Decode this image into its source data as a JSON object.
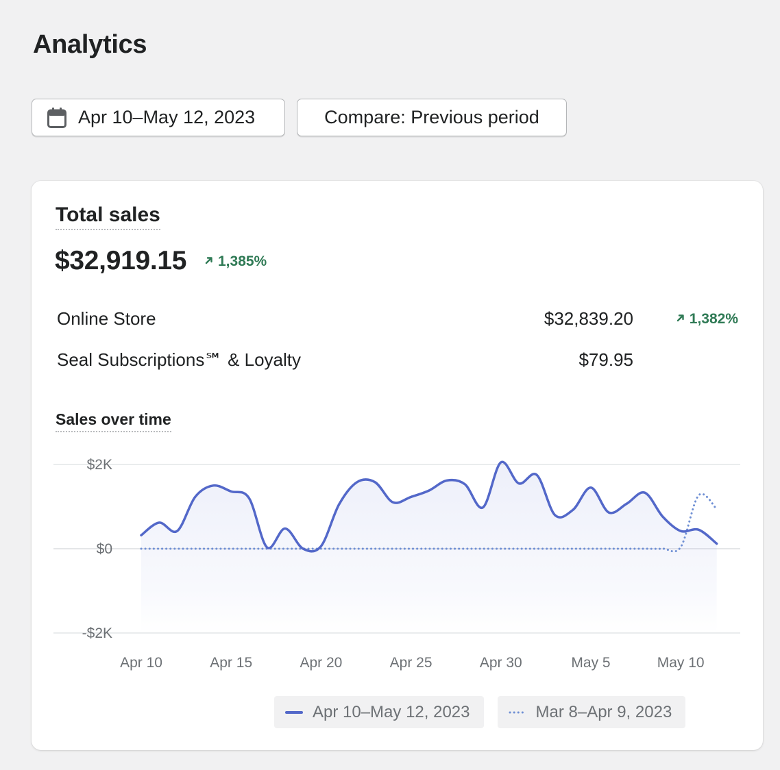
{
  "page": {
    "title": "Analytics"
  },
  "toolbar": {
    "date_range_label": "Apr 10–May 12, 2023",
    "compare_label": "Compare: Previous period",
    "date_icon": "calendar-icon"
  },
  "card": {
    "title": "Total sales",
    "total_value": "$32,919.15",
    "total_delta": "1,385%",
    "rows": [
      {
        "name": "Online Store",
        "value": "$32,839.20",
        "delta": "1,382%"
      },
      {
        "name": "Seal Subscriptions℠ & Loyalty",
        "value": "$79.95",
        "delta": ""
      }
    ]
  },
  "chart": {
    "title": "Sales over time"
  },
  "colors": {
    "current": "#5368c9",
    "previous": "#6e8fd4",
    "positive": "#2f7a55"
  },
  "chart_data": {
    "type": "line",
    "x": [
      "Apr 10",
      "Apr 11",
      "Apr 12",
      "Apr 13",
      "Apr 14",
      "Apr 15",
      "Apr 16",
      "Apr 17",
      "Apr 18",
      "Apr 19",
      "Apr 20",
      "Apr 21",
      "Apr 22",
      "Apr 23",
      "Apr 24",
      "Apr 25",
      "Apr 26",
      "Apr 27",
      "Apr 28",
      "Apr 29",
      "Apr 30",
      "May 1",
      "May 2",
      "May 3",
      "May 4",
      "May 5",
      "May 6",
      "May 7",
      "May 8",
      "May 9",
      "May 10",
      "May 11",
      "May 12"
    ],
    "x_tick_labels": [
      "Apr 10",
      "Apr 15",
      "Apr 20",
      "Apr 25",
      "Apr 30",
      "May 5",
      "May 10"
    ],
    "y_tick_labels": [
      "$2K",
      "$0",
      "-$2K"
    ],
    "ylim": [
      -2000,
      2000
    ],
    "grid": true,
    "legend": "bottom-right",
    "series": [
      {
        "name": "Apr 10–May 12, 2023",
        "style": "solid",
        "values": [
          320,
          620,
          420,
          1230,
          1500,
          1360,
          1200,
          30,
          480,
          0,
          60,
          1050,
          1580,
          1580,
          1100,
          1230,
          1380,
          1620,
          1530,
          980,
          2050,
          1550,
          1750,
          800,
          920,
          1450,
          860,
          1070,
          1330,
          760,
          420,
          450,
          120
        ]
      },
      {
        "name": "Mar 8–Apr 9, 2023",
        "style": "dotted",
        "values": [
          0,
          0,
          0,
          0,
          0,
          0,
          0,
          0,
          0,
          0,
          0,
          0,
          0,
          0,
          0,
          0,
          0,
          0,
          0,
          0,
          0,
          0,
          0,
          0,
          0,
          0,
          0,
          0,
          0,
          0,
          40,
          1270,
          940
        ]
      }
    ]
  },
  "legend": {
    "current_label": "Apr 10–May 12, 2023",
    "previous_label": "Mar 8–Apr 9, 2023"
  }
}
